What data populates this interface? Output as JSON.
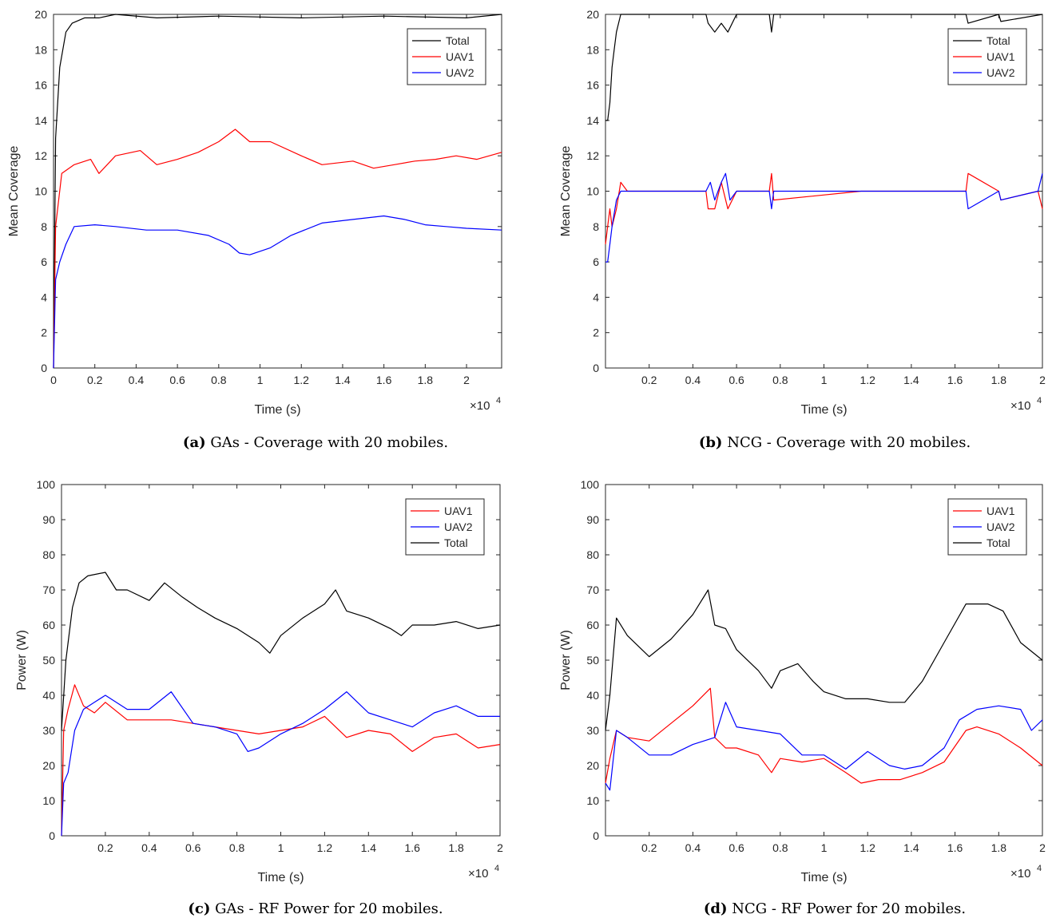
{
  "charts": [
    {
      "caption_label": "(a)",
      "caption_text": "GAs - Coverage with 20 mobiles.",
      "type": "line",
      "xlabel": "Time (s)",
      "ylabel": "Mean Coverage",
      "x_exponent": "×10",
      "x_exponent_power": "4",
      "xlim": [
        0,
        2.17
      ],
      "ylim": [
        0,
        20
      ],
      "xticks": [
        "0",
        "0.2",
        "0.4",
        "0.6",
        "0.8",
        "1",
        "1.2",
        "1.4",
        "1.6",
        "1.8",
        "2"
      ],
      "xtick_values": [
        0,
        0.2,
        0.4,
        0.6,
        0.8,
        1,
        1.2,
        1.4,
        1.6,
        1.8,
        2
      ],
      "yticks": [
        "0",
        "2",
        "4",
        "6",
        "8",
        "10",
        "12",
        "14",
        "16",
        "18",
        "20"
      ],
      "ytick_values": [
        0,
        2,
        4,
        6,
        8,
        10,
        12,
        14,
        16,
        18,
        20
      ],
      "legend_position": "top-right",
      "series": [
        {
          "name": "Total",
          "color": "#000000",
          "x": [
            0,
            0.01,
            0.03,
            0.06,
            0.09,
            0.15,
            0.22,
            0.3,
            0.5,
            0.8,
            1.2,
            1.6,
            2.0,
            2.17
          ],
          "y": [
            0,
            13,
            17,
            19,
            19.5,
            19.8,
            19.8,
            20,
            19.8,
            19.9,
            19.8,
            19.9,
            19.8,
            20
          ]
        },
        {
          "name": "UAV1",
          "color": "#ff0000",
          "x": [
            0,
            0.01,
            0.04,
            0.1,
            0.18,
            0.22,
            0.3,
            0.42,
            0.5,
            0.6,
            0.7,
            0.8,
            0.88,
            0.95,
            1.05,
            1.2,
            1.3,
            1.45,
            1.55,
            1.65,
            1.75,
            1.85,
            1.95,
            2.05,
            2.17
          ],
          "y": [
            0,
            8,
            11,
            11.5,
            11.8,
            11,
            12,
            12.3,
            11.5,
            11.8,
            12.2,
            12.8,
            13.5,
            12.8,
            12.8,
            12,
            11.5,
            11.7,
            11.3,
            11.5,
            11.7,
            11.8,
            12,
            11.8,
            12.2
          ]
        },
        {
          "name": "UAV2",
          "color": "#0000ff",
          "x": [
            0,
            0.01,
            0.03,
            0.06,
            0.1,
            0.2,
            0.3,
            0.45,
            0.6,
            0.75,
            0.85,
            0.9,
            0.95,
            1.05,
            1.15,
            1.3,
            1.45,
            1.6,
            1.7,
            1.8,
            1.9,
            2.0,
            2.17
          ],
          "y": [
            0,
            5,
            6,
            7,
            8,
            8.1,
            8,
            7.8,
            7.8,
            7.5,
            7,
            6.5,
            6.4,
            6.8,
            7.5,
            8.2,
            8.4,
            8.6,
            8.4,
            8.1,
            8,
            7.9,
            7.8
          ]
        }
      ]
    },
    {
      "caption_label": "(b)",
      "caption_text": "NCG - Coverage with 20 mobiles.",
      "type": "line",
      "xlabel": "Time (s)",
      "ylabel": "Mean Coverage",
      "x_exponent": "×10",
      "x_exponent_power": "4",
      "xlim": [
        0,
        2.0
      ],
      "ylim": [
        0,
        20
      ],
      "xticks": [
        "0.2",
        "0.4",
        "0.6",
        "0.8",
        "1",
        "1.2",
        "1.4",
        "1.6",
        "1.8",
        "2"
      ],
      "xtick_values": [
        0.2,
        0.4,
        0.6,
        0.8,
        1,
        1.2,
        1.4,
        1.6,
        1.8,
        2
      ],
      "yticks": [
        "0",
        "2",
        "4",
        "6",
        "8",
        "10",
        "12",
        "14",
        "16",
        "18",
        "20"
      ],
      "ytick_values": [
        0,
        2,
        4,
        6,
        8,
        10,
        12,
        14,
        16,
        18,
        20
      ],
      "legend_position": "top-right",
      "series": [
        {
          "name": "Total",
          "color": "#000000",
          "x": [
            0,
            0.01,
            0.02,
            0.03,
            0.04,
            0.05,
            0.07,
            0.1,
            0.46,
            0.47,
            0.5,
            0.53,
            0.56,
            0.6,
            0.75,
            0.76,
            0.77,
            1.17,
            1.65,
            1.66,
            1.8,
            1.81,
            2.0
          ],
          "y": [
            14,
            14,
            15,
            17,
            18,
            19,
            20,
            20,
            20,
            19.5,
            19,
            19.5,
            19,
            20,
            20,
            19,
            20,
            20,
            20,
            19.5,
            20,
            19.6,
            20
          ]
        },
        {
          "name": "UAV1",
          "color": "#ff0000",
          "x": [
            0,
            0.01,
            0.02,
            0.03,
            0.05,
            0.07,
            0.1,
            0.46,
            0.47,
            0.5,
            0.53,
            0.56,
            0.6,
            0.75,
            0.76,
            0.77,
            1.17,
            1.65,
            1.66,
            1.8,
            1.81,
            1.98,
            2.0
          ],
          "y": [
            7,
            8,
            9,
            8,
            9,
            10.5,
            10,
            10,
            9,
            9,
            10.5,
            9,
            10,
            10,
            11,
            9.5,
            10,
            10,
            11,
            10,
            9.5,
            10,
            9
          ]
        },
        {
          "name": "UAV2",
          "color": "#0000ff",
          "x": [
            0,
            0.01,
            0.02,
            0.03,
            0.05,
            0.07,
            0.1,
            0.46,
            0.48,
            0.5,
            0.53,
            0.55,
            0.57,
            0.6,
            0.75,
            0.76,
            0.77,
            1.17,
            1.65,
            1.66,
            1.8,
            1.81,
            1.98,
            2.0
          ],
          "y": [
            6,
            6,
            7,
            8,
            9.5,
            10,
            10,
            10,
            10.5,
            9.5,
            10.5,
            11,
            9.5,
            10,
            10,
            9,
            10,
            10,
            10,
            9,
            10,
            9.5,
            10,
            11
          ]
        }
      ]
    },
    {
      "caption_label": "(c)",
      "caption_text": "GAs - RF Power for 20 mobiles.",
      "type": "line",
      "xlabel": "Time (s)",
      "ylabel": "Power (W)",
      "x_exponent": "×10",
      "x_exponent_power": "4",
      "xlim": [
        0,
        2.0
      ],
      "ylim": [
        0,
        100
      ],
      "xticks": [
        "0.2",
        "0.4",
        "0.6",
        "0.8",
        "1",
        "1.2",
        "1.4",
        "1.6",
        "1.8",
        "2"
      ],
      "xtick_values": [
        0.2,
        0.4,
        0.6,
        0.8,
        1,
        1.2,
        1.4,
        1.6,
        1.8,
        2
      ],
      "yticks": [
        "0",
        "10",
        "20",
        "30",
        "40",
        "50",
        "60",
        "70",
        "80",
        "90",
        "100"
      ],
      "ytick_values": [
        0,
        10,
        20,
        30,
        40,
        50,
        60,
        70,
        80,
        90,
        100
      ],
      "legend_position": "top-right",
      "series": [
        {
          "name": "UAV1",
          "color": "#ff0000",
          "x": [
            0,
            0.01,
            0.03,
            0.06,
            0.1,
            0.15,
            0.2,
            0.3,
            0.4,
            0.5,
            0.6,
            0.7,
            0.8,
            0.9,
            1.0,
            1.1,
            1.2,
            1.3,
            1.4,
            1.5,
            1.6,
            1.7,
            1.8,
            1.9,
            2.0
          ],
          "y": [
            0,
            30,
            36,
            43,
            37,
            35,
            38,
            33,
            33,
            33,
            32,
            31,
            30,
            29,
            30,
            31,
            34,
            28,
            30,
            29,
            24,
            28,
            29,
            25,
            26
          ]
        },
        {
          "name": "UAV2",
          "color": "#0000ff",
          "x": [
            0,
            0.01,
            0.03,
            0.06,
            0.1,
            0.15,
            0.2,
            0.3,
            0.4,
            0.5,
            0.6,
            0.7,
            0.8,
            0.85,
            0.9,
            1.0,
            1.1,
            1.2,
            1.3,
            1.4,
            1.5,
            1.6,
            1.7,
            1.8,
            1.9,
            2.0
          ],
          "y": [
            0,
            15,
            18,
            30,
            36,
            38,
            40,
            36,
            36,
            41,
            32,
            31,
            29,
            24,
            25,
            29,
            32,
            36,
            41,
            35,
            33,
            31,
            35,
            37,
            34,
            34
          ]
        },
        {
          "name": "Total",
          "color": "#000000",
          "x": [
            0,
            0.02,
            0.05,
            0.08,
            0.12,
            0.2,
            0.25,
            0.3,
            0.4,
            0.47,
            0.55,
            0.62,
            0.7,
            0.8,
            0.9,
            0.95,
            1.0,
            1.1,
            1.2,
            1.25,
            1.3,
            1.4,
            1.5,
            1.55,
            1.6,
            1.7,
            1.8,
            1.9,
            2.0
          ],
          "y": [
            30,
            50,
            65,
            72,
            74,
            75,
            70,
            70,
            67,
            72,
            68,
            65,
            62,
            59,
            55,
            52,
            57,
            62,
            66,
            70,
            64,
            62,
            59,
            57,
            60,
            60,
            61,
            59,
            60
          ]
        }
      ]
    },
    {
      "caption_label": "(d)",
      "caption_text": "NCG - RF Power for 20 mobiles.",
      "type": "line",
      "xlabel": "Time (s)",
      "ylabel": "Power (W)",
      "x_exponent": "×10",
      "x_exponent_power": "4",
      "xlim": [
        0,
        2.0
      ],
      "ylim": [
        0,
        100
      ],
      "xticks": [
        "0.2",
        "0.4",
        "0.6",
        "0.8",
        "1",
        "1.2",
        "1.4",
        "1.6",
        "1.8",
        "2"
      ],
      "xtick_values": [
        0.2,
        0.4,
        0.6,
        0.8,
        1,
        1.2,
        1.4,
        1.6,
        1.8,
        2
      ],
      "yticks": [
        "0",
        "10",
        "20",
        "30",
        "40",
        "50",
        "60",
        "70",
        "80",
        "90",
        "100"
      ],
      "ytick_values": [
        0,
        10,
        20,
        30,
        40,
        50,
        60,
        70,
        80,
        90,
        100
      ],
      "legend_position": "top-right",
      "series": [
        {
          "name": "UAV1",
          "color": "#ff0000",
          "x": [
            0,
            0.02,
            0.05,
            0.1,
            0.2,
            0.3,
            0.4,
            0.48,
            0.5,
            0.55,
            0.6,
            0.7,
            0.76,
            0.8,
            0.9,
            1.0,
            1.1,
            1.17,
            1.25,
            1.35,
            1.45,
            1.55,
            1.65,
            1.7,
            1.8,
            1.9,
            2.0
          ],
          "y": [
            15,
            22,
            30,
            28,
            27,
            32,
            37,
            42,
            28,
            25,
            25,
            23,
            18,
            22,
            21,
            22,
            18,
            15,
            16,
            16,
            18,
            21,
            30,
            31,
            29,
            25,
            20
          ]
        },
        {
          "name": "UAV2",
          "color": "#0000ff",
          "x": [
            0,
            0.02,
            0.05,
            0.1,
            0.2,
            0.3,
            0.4,
            0.5,
            0.55,
            0.6,
            0.7,
            0.8,
            0.9,
            1.0,
            1.1,
            1.2,
            1.3,
            1.37,
            1.45,
            1.55,
            1.62,
            1.7,
            1.8,
            1.9,
            1.95,
            2.0
          ],
          "y": [
            15,
            13,
            30,
            28,
            23,
            23,
            26,
            28,
            38,
            31,
            30,
            29,
            23,
            23,
            19,
            24,
            20,
            19,
            20,
            25,
            33,
            36,
            37,
            36,
            30,
            33
          ]
        },
        {
          "name": "Total",
          "color": "#000000",
          "x": [
            0,
            0.02,
            0.05,
            0.1,
            0.2,
            0.3,
            0.4,
            0.47,
            0.5,
            0.55,
            0.6,
            0.7,
            0.76,
            0.8,
            0.88,
            0.95,
            1.0,
            1.1,
            1.2,
            1.3,
            1.37,
            1.45,
            1.55,
            1.65,
            1.75,
            1.82,
            1.9,
            2.0
          ],
          "y": [
            30,
            40,
            62,
            57,
            51,
            56,
            63,
            70,
            60,
            59,
            53,
            47,
            42,
            47,
            49,
            44,
            41,
            39,
            39,
            38,
            38,
            44,
            55,
            66,
            66,
            64,
            55,
            50
          ]
        }
      ]
    }
  ]
}
